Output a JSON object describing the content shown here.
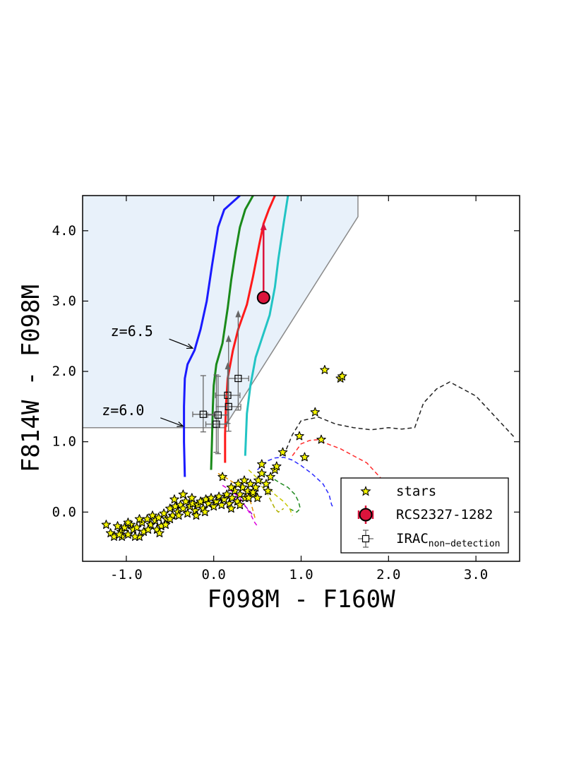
{
  "chart_data": {
    "type": "scatter",
    "xlabel": "F098M - F160W",
    "ylabel": "F814W - F098M",
    "xlim": [
      -1.5,
      3.5
    ],
    "ylim": [
      -0.7,
      4.5
    ],
    "xticks": [
      {
        "value": -1.0,
        "label": "-1.0"
      },
      {
        "value": 0.0,
        "label": "0.0"
      },
      {
        "value": 1.0,
        "label": "1.0"
      },
      {
        "value": 2.0,
        "label": "2.0"
      },
      {
        "value": 3.0,
        "label": "3.0"
      }
    ],
    "yticks": [
      {
        "value": 0.0,
        "label": "0.0"
      },
      {
        "value": 1.0,
        "label": "1.0"
      },
      {
        "value": 2.0,
        "label": "2.0"
      },
      {
        "value": 3.0,
        "label": "3.0"
      },
      {
        "value": 4.0,
        "label": "4.0"
      }
    ],
    "selection_region": {
      "fill": "#e8f1fa",
      "edge": "#8a8a8a",
      "vertices": [
        [
          -1.5,
          1.2
        ],
        [
          0.12,
          1.2
        ],
        [
          1.65,
          4.2
        ],
        [
          1.65,
          4.5
        ],
        [
          -1.5,
          4.5
        ]
      ]
    },
    "model_tracks": [
      {
        "name": "blue",
        "color": "#1a1aff",
        "points": [
          [
            -0.33,
            0.5
          ],
          [
            -0.34,
            1.0
          ],
          [
            -0.34,
            1.5
          ],
          [
            -0.33,
            1.9
          ],
          [
            -0.3,
            2.1
          ],
          [
            -0.22,
            2.3
          ],
          [
            -0.15,
            2.6
          ],
          [
            -0.08,
            3.0
          ],
          [
            -0.02,
            3.5
          ],
          [
            0.05,
            4.05
          ],
          [
            0.12,
            4.3
          ],
          [
            0.3,
            4.5
          ]
        ]
      },
      {
        "name": "green",
        "color": "#1a8a1a",
        "points": [
          [
            -0.03,
            0.6
          ],
          [
            -0.02,
            1.0
          ],
          [
            -0.01,
            1.5
          ],
          [
            0.0,
            1.8
          ],
          [
            0.03,
            2.1
          ],
          [
            0.1,
            2.4
          ],
          [
            0.16,
            2.9
          ],
          [
            0.2,
            3.3
          ],
          [
            0.25,
            3.7
          ],
          [
            0.3,
            4.05
          ],
          [
            0.36,
            4.3
          ],
          [
            0.45,
            4.5
          ]
        ]
      },
      {
        "name": "red",
        "color": "#ff1a1a",
        "points": [
          [
            0.13,
            0.7
          ],
          [
            0.13,
            1.1
          ],
          [
            0.14,
            1.5
          ],
          [
            0.16,
            1.9
          ],
          [
            0.22,
            2.3
          ],
          [
            0.28,
            2.6
          ],
          [
            0.38,
            2.95
          ],
          [
            0.45,
            3.35
          ],
          [
            0.52,
            3.8
          ],
          [
            0.57,
            4.1
          ],
          [
            0.63,
            4.3
          ],
          [
            0.7,
            4.5
          ]
        ]
      },
      {
        "name": "cyan",
        "color": "#22c4c4",
        "points": [
          [
            0.36,
            0.8
          ],
          [
            0.37,
            1.1
          ],
          [
            0.38,
            1.4
          ],
          [
            0.42,
            1.8
          ],
          [
            0.48,
            2.2
          ],
          [
            0.56,
            2.5
          ],
          [
            0.64,
            2.8
          ],
          [
            0.7,
            3.2
          ],
          [
            0.74,
            3.6
          ],
          [
            0.8,
            4.1
          ],
          [
            0.85,
            4.5
          ]
        ]
      }
    ],
    "redshift_labels": [
      {
        "label": "z=6.5",
        "text_at": [
          -1.18,
          2.5
        ],
        "arrow_to": [
          -0.24,
          2.33
        ]
      },
      {
        "label": "z=6.0",
        "text_at": [
          -1.28,
          1.38
        ],
        "arrow_to": [
          -0.35,
          1.22
        ]
      }
    ],
    "galaxy_templates": [
      {
        "name": "black",
        "color": "#222222",
        "points": [
          [
            0.8,
            0.8
          ],
          [
            0.9,
            1.1
          ],
          [
            1.0,
            1.3
          ],
          [
            1.2,
            1.35
          ],
          [
            1.4,
            1.25
          ],
          [
            1.6,
            1.2
          ],
          [
            1.8,
            1.17
          ],
          [
            2.0,
            1.2
          ],
          [
            2.15,
            1.18
          ],
          [
            2.3,
            1.2
          ],
          [
            2.4,
            1.55
          ],
          [
            2.55,
            1.75
          ],
          [
            2.7,
            1.85
          ],
          [
            2.85,
            1.75
          ],
          [
            3.0,
            1.65
          ],
          [
            3.15,
            1.45
          ],
          [
            3.3,
            1.25
          ],
          [
            3.45,
            1.05
          ]
        ]
      },
      {
        "name": "red",
        "color": "#ff2a2a",
        "points": [
          [
            0.9,
            0.8
          ],
          [
            1.0,
            0.97
          ],
          [
            1.1,
            1.02
          ],
          [
            1.2,
            1.03
          ],
          [
            1.3,
            0.97
          ],
          [
            1.45,
            0.9
          ],
          [
            1.6,
            0.8
          ],
          [
            1.75,
            0.7
          ],
          [
            1.9,
            0.5
          ],
          [
            2.0,
            0.35
          ]
        ]
      },
      {
        "name": "blue",
        "color": "#2a2aff",
        "points": [
          [
            0.5,
            0.6
          ],
          [
            0.6,
            0.72
          ],
          [
            0.7,
            0.77
          ],
          [
            0.8,
            0.78
          ],
          [
            0.9,
            0.74
          ],
          [
            1.0,
            0.66
          ],
          [
            1.12,
            0.55
          ],
          [
            1.25,
            0.4
          ],
          [
            1.32,
            0.25
          ],
          [
            1.35,
            0.1
          ],
          [
            1.38,
            0.05
          ]
        ]
      },
      {
        "name": "green",
        "color": "#228b22",
        "points": [
          [
            0.55,
            0.55
          ],
          [
            0.65,
            0.5
          ],
          [
            0.75,
            0.42
          ],
          [
            0.85,
            0.35
          ],
          [
            0.93,
            0.25
          ],
          [
            0.97,
            0.15
          ],
          [
            0.99,
            0.05
          ],
          [
            0.95,
            0.0
          ],
          [
            0.86,
            0.05
          ]
        ]
      },
      {
        "name": "yellow",
        "color": "#c8c800",
        "points": [
          [
            0.4,
            0.6
          ],
          [
            0.5,
            0.48
          ],
          [
            0.6,
            0.38
          ],
          [
            0.7,
            0.25
          ],
          [
            0.8,
            0.15
          ],
          [
            0.87,
            0.05
          ],
          [
            0.9,
            -0.05
          ]
        ]
      },
      {
        "name": "olive",
        "color": "#b0b000",
        "points": [
          [
            0.5,
            0.45
          ],
          [
            0.56,
            0.35
          ],
          [
            0.62,
            0.25
          ],
          [
            0.66,
            0.15
          ],
          [
            0.7,
            0.05
          ],
          [
            0.74,
            0.0
          ],
          [
            0.8,
            0.05
          ]
        ]
      },
      {
        "name": "orange",
        "color": "#e09000",
        "points": [
          [
            0.05,
            0.55
          ],
          [
            0.15,
            0.48
          ],
          [
            0.25,
            0.4
          ],
          [
            0.35,
            0.3
          ],
          [
            0.42,
            0.15
          ],
          [
            0.45,
            0.02
          ],
          [
            0.48,
            -0.12
          ]
        ]
      },
      {
        "name": "magenta",
        "color": "#dd00dd",
        "points": [
          [
            0.1,
            0.38
          ],
          [
            0.2,
            0.3
          ],
          [
            0.3,
            0.2
          ],
          [
            0.38,
            0.05
          ],
          [
            0.43,
            -0.05
          ],
          [
            0.47,
            -0.15
          ],
          [
            0.5,
            -0.2
          ]
        ]
      },
      {
        "name": "purple",
        "color": "#9900cc",
        "points": [
          [
            0.15,
            0.25
          ],
          [
            0.25,
            0.18
          ],
          [
            0.35,
            0.1
          ],
          [
            0.42,
            0.0
          ],
          [
            0.45,
            -0.05
          ]
        ]
      }
    ],
    "stars": [
      [
        -1.23,
        -0.18
      ],
      [
        -1.18,
        -0.3
      ],
      [
        -1.14,
        -0.35
      ],
      [
        -1.1,
        -0.2
      ],
      [
        -1.06,
        -0.28
      ],
      [
        -1.02,
        -0.22
      ],
      [
        -1.05,
        -0.35
      ],
      [
        -0.98,
        -0.32
      ],
      [
        -0.95,
        -0.18
      ],
      [
        -0.92,
        -0.25
      ],
      [
        -0.88,
        -0.22
      ],
      [
        -0.85,
        -0.35
      ],
      [
        -0.82,
        -0.15
      ],
      [
        -0.8,
        -0.28
      ],
      [
        -0.76,
        -0.1
      ],
      [
        -0.72,
        -0.18
      ],
      [
        -0.7,
        -0.05
      ],
      [
        -0.67,
        -0.12
      ],
      [
        -0.63,
        -0.08
      ],
      [
        -0.6,
        -0.2
      ],
      [
        -0.57,
        -0.02
      ],
      [
        -0.54,
        -0.1
      ],
      [
        -0.5,
        0.05
      ],
      [
        -0.47,
        -0.05
      ],
      [
        -0.44,
        0.08
      ],
      [
        -0.41,
        0.0
      ],
      [
        -0.38,
        0.1
      ],
      [
        -0.35,
        0.05
      ],
      [
        -0.32,
        0.15
      ],
      [
        -0.3,
        -0.02
      ],
      [
        -0.27,
        0.08
      ],
      [
        -0.24,
        0.12
      ],
      [
        -0.21,
        0.02
      ],
      [
        -0.18,
        0.1
      ],
      [
        -0.15,
        0.15
      ],
      [
        -0.12,
        0.05
      ],
      [
        -0.09,
        0.18
      ],
      [
        -0.06,
        0.12
      ],
      [
        -0.03,
        0.2
      ],
      [
        0.0,
        0.08
      ],
      [
        0.03,
        0.15
      ],
      [
        0.06,
        0.22
      ],
      [
        0.09,
        0.1
      ],
      [
        0.12,
        0.18
      ],
      [
        0.15,
        0.25
      ],
      [
        0.18,
        0.12
      ],
      [
        0.21,
        0.2
      ],
      [
        0.24,
        0.3
      ],
      [
        0.27,
        0.15
      ],
      [
        0.3,
        0.25
      ],
      [
        0.33,
        0.35
      ],
      [
        0.36,
        0.2
      ],
      [
        0.39,
        0.3
      ],
      [
        0.42,
        0.4
      ],
      [
        0.45,
        0.25
      ],
      [
        0.48,
        0.35
      ],
      [
        0.51,
        0.45
      ],
      [
        0.55,
        0.55
      ],
      [
        0.6,
        0.4
      ],
      [
        0.65,
        0.5
      ],
      [
        0.7,
        0.6
      ],
      [
        0.55,
        0.68
      ],
      [
        0.45,
        0.28
      ],
      [
        -0.4,
        -0.05
      ],
      [
        -0.55,
        -0.18
      ],
      [
        -0.65,
        -0.25
      ],
      [
        -0.45,
        0.18
      ],
      [
        -0.35,
        0.25
      ],
      [
        -0.25,
        0.2
      ],
      [
        0.1,
        0.5
      ],
      [
        -0.75,
        -0.25
      ],
      [
        -0.62,
        -0.3
      ],
      [
        -0.98,
        -0.15
      ],
      [
        -0.9,
        -0.35
      ],
      [
        0.2,
        0.35
      ],
      [
        0.28,
        0.4
      ],
      [
        0.35,
        0.45
      ],
      [
        0.62,
        0.3
      ],
      [
        0.72,
        0.65
      ],
      [
        0.79,
        0.85
      ],
      [
        0.98,
        1.08
      ],
      [
        1.04,
        0.78
      ],
      [
        1.16,
        1.42
      ],
      [
        1.23,
        1.03
      ],
      [
        1.27,
        2.02
      ],
      [
        1.45,
        1.9
      ],
      [
        1.47,
        1.93
      ],
      [
        0.5,
        0.2
      ],
      [
        0.4,
        0.2
      ],
      [
        0.3,
        0.1
      ],
      [
        0.2,
        0.05
      ],
      [
        -0.1,
        0.0
      ],
      [
        -0.2,
        -0.05
      ],
      [
        -0.5,
        -0.1
      ],
      [
        -0.85,
        -0.1
      ],
      [
        -1.08,
        -0.32
      ]
    ],
    "irac_non_detections": [
      {
        "x": -0.12,
        "y": 1.39,
        "xerr": 0.12,
        "yerr_low": 0.25,
        "yerr_high": 0.55,
        "arrow": false
      },
      {
        "x": 0.03,
        "y": 1.25,
        "xerr": 0.12,
        "yerr_low": 0.4,
        "yerr_high": 0.7,
        "arrow": false
      },
      {
        "x": 0.05,
        "y": 1.38,
        "xerr": 0.12,
        "yerr_low": 0.55,
        "yerr_high": 0.55,
        "arrow": false
      },
      {
        "x": 0.16,
        "y": 1.66,
        "xerr": 0.14,
        "yerr_low": 0.4,
        "yerr_high": 0.45,
        "arrow": true
      },
      {
        "x": 0.17,
        "y": 1.5,
        "xerr": 0.14,
        "yerr_low": 0.35,
        "yerr_high": 1.0,
        "arrow": true
      },
      {
        "x": 0.28,
        "y": 1.9,
        "xerr": 0.12,
        "yerr_low": 0.45,
        "yerr_high": 0.95,
        "arrow": true
      }
    ],
    "target": {
      "name": "RCS2327-1282",
      "x": 0.57,
      "y": 3.05,
      "lower_limit_to": 4.1,
      "color": "#dc143c"
    },
    "legend": {
      "position": "lower-right",
      "entries": [
        {
          "label": "stars",
          "marker": "star"
        },
        {
          "label": "RCS2327-1282",
          "marker": "circle"
        },
        {
          "label": "IRAC",
          "subscript": "non−detection",
          "marker": "square-errorbar"
        }
      ]
    }
  }
}
